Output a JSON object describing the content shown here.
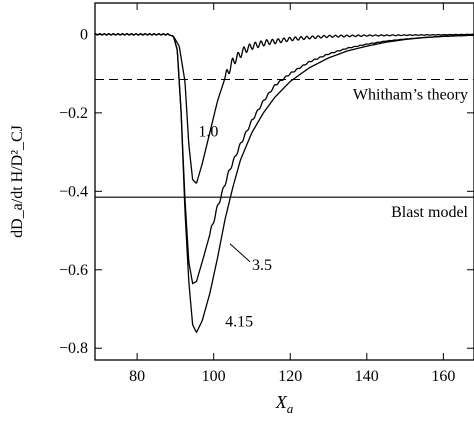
{
  "chart_data": {
    "type": "line",
    "xlabel_main": "X",
    "xlabel_sub": "a",
    "ylabel": "dD_a/dt H/D²_CJ",
    "xlim": [
      69,
      168
    ],
    "ylim": [
      -0.83,
      0.08
    ],
    "x_ticks": [
      80,
      100,
      120,
      140,
      160
    ],
    "y_ticks": [
      0,
      -0.2,
      -0.4,
      -0.6,
      -0.8
    ],
    "x_tick_labels": [
      "80",
      "100",
      "120",
      "140",
      "160"
    ],
    "y_tick_labels": [
      "0",
      "−0.2",
      "−0.4",
      "−0.6",
      "−0.8"
    ],
    "grid": false,
    "legend": "none",
    "reference_lines": [
      {
        "label": "Whitham’s theory",
        "y": -0.115,
        "style": "dashed"
      },
      {
        "label": "Blast model",
        "y": -0.415,
        "style": "solid"
      }
    ],
    "series": [
      {
        "name": "1.0",
        "x": [
          69,
          80,
          88,
          89.5,
          91,
          92.5,
          93.5,
          94.5,
          95.5,
          97,
          99,
          101,
          103,
          105,
          106.5,
          108,
          110,
          112,
          114,
          116,
          118,
          120,
          125,
          130,
          140,
          150,
          160,
          168
        ],
        "y": [
          0,
          0,
          0,
          -0.005,
          -0.03,
          -0.12,
          -0.28,
          -0.37,
          -0.38,
          -0.33,
          -0.25,
          -0.17,
          -0.11,
          -0.07,
          -0.055,
          -0.04,
          -0.03,
          -0.025,
          -0.02,
          -0.018,
          -0.015,
          -0.012,
          -0.008,
          -0.005,
          -0.003,
          -0.002,
          -0.001,
          0
        ],
        "oscillation_onset_x": 103,
        "oscillation_amplitude": 0.012
      },
      {
        "name": "3.5",
        "x": [
          69,
          80,
          88,
          89.5,
          90.5,
          91.5,
          92.5,
          93.5,
          94.5,
          95.5,
          97,
          99,
          101,
          104,
          107,
          110,
          113,
          116,
          120,
          125,
          130,
          135,
          140,
          145,
          150,
          155,
          160,
          168
        ],
        "y": [
          0,
          0,
          0,
          -0.005,
          -0.04,
          -0.2,
          -0.42,
          -0.58,
          -0.635,
          -0.63,
          -0.58,
          -0.51,
          -0.44,
          -0.35,
          -0.28,
          -0.22,
          -0.17,
          -0.13,
          -0.1,
          -0.07,
          -0.05,
          -0.035,
          -0.025,
          -0.017,
          -0.012,
          -0.008,
          -0.005,
          -0.002
        ],
        "oscillation_onset_x": 99,
        "oscillation_amplitude": 0.006
      },
      {
        "name": "4.15",
        "x": [
          69,
          80,
          88,
          89.5,
          90.5,
          91.5,
          92.5,
          93.5,
          94.5,
          95.5,
          97,
          99,
          101,
          103,
          105,
          107,
          110,
          113,
          116,
          120,
          125,
          130,
          135,
          140,
          145,
          150,
          155,
          160,
          168
        ],
        "y": [
          0,
          0,
          0,
          -0.005,
          -0.04,
          -0.2,
          -0.45,
          -0.63,
          -0.74,
          -0.76,
          -0.73,
          -0.66,
          -0.57,
          -0.47,
          -0.39,
          -0.32,
          -0.25,
          -0.2,
          -0.16,
          -0.12,
          -0.085,
          -0.06,
          -0.042,
          -0.03,
          -0.02,
          -0.013,
          -0.008,
          -0.005,
          -0.002
        ],
        "oscillation_onset_x": 0,
        "oscillation_amplitude": 0
      }
    ],
    "annotations": [
      {
        "text": "1.0",
        "x": 96,
        "y": -0.26
      },
      {
        "text": "3.5",
        "x": 110,
        "y": -0.6
      },
      {
        "text": "4.15",
        "x": 103,
        "y": -0.745
      }
    ]
  }
}
